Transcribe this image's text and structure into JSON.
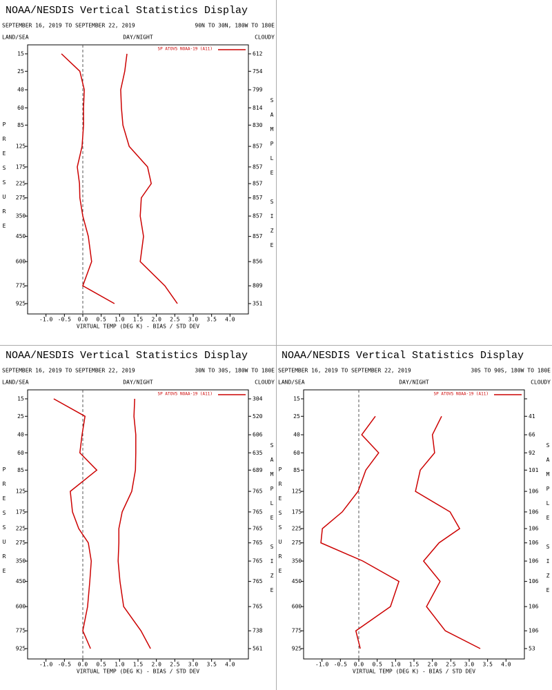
{
  "chart_data": [
    {
      "type": "line",
      "title": "NOAA/NESDIS Vertical Statistics Display",
      "subtitle": "SEPTEMBER 16, 2019 TO SEPTEMBER 22, 2019",
      "region": "90N TO 30N, 180W TO 180E",
      "left_label": "LAND/SEA",
      "center_label": "DAY/NIGHT",
      "right_label": "CLOUDY",
      "xlabel": "VIRTUAL TEMP (DEG K) - BIAS / STD DEV",
      "ylabel": "PRESSURE",
      "y2label": "SAMPLE SIZE",
      "xlim": [
        -1.5,
        4.5
      ],
      "xticks": [
        {
          "value": -1,
          "label": "-1.0"
        },
        -0.5,
        {
          "value": 0,
          "label": "0.0"
        },
        0.5,
        {
          "value": 1,
          "label": "1.0"
        },
        1.5,
        {
          "value": 2,
          "label": "2.0"
        },
        2.5,
        {
          "value": 3,
          "label": "3.0"
        },
        3.5,
        {
          "value": 4,
          "label": "4.0"
        }
      ],
      "y": [
        15,
        25,
        40,
        60,
        85,
        125,
        175,
        225,
        275,
        350,
        450,
        600,
        775,
        925
      ],
      "sample_size": [
        612,
        754,
        799,
        814,
        830,
        857,
        857,
        857,
        857,
        857,
        857,
        856,
        809,
        351
      ],
      "series": [
        {
          "name": "SP ATOVS NOAA-19 (A11)",
          "color": "#cc0000",
          "bias": [
            -0.58,
            -0.08,
            0.04,
            0.02,
            0.02,
            -0.02,
            -0.15,
            -0.09,
            -0.08,
            0,
            0.15,
            0.24,
            0,
            0.86
          ],
          "std_dev": [
            1.2,
            1.14,
            1.03,
            1.05,
            1.09,
            1.26,
            1.76,
            1.86,
            1.59,
            1.56,
            1.65,
            1.56,
            2.23,
            2.57
          ]
        }
      ]
    },
    {
      "type": "line",
      "title": "NOAA/NESDIS Vertical Statistics Display",
      "subtitle": "SEPTEMBER 16, 2019 TO SEPTEMBER 22, 2019",
      "region": "30N TO 30S, 180W TO 180E",
      "left_label": "LAND/SEA",
      "center_label": "DAY/NIGHT",
      "right_label": "CLOUDY",
      "xlabel": "VIRTUAL TEMP (DEG K) - BIAS / STD DEV",
      "ylabel": "PRESSURE",
      "y2label": "SAMPLE SIZE",
      "xlim": [
        -1.5,
        4.5
      ],
      "xticks": [
        {
          "value": -1,
          "label": "-1.0"
        },
        -0.5,
        {
          "value": 0,
          "label": "0.0"
        },
        0.5,
        {
          "value": 1,
          "label": "1.0"
        },
        1.5,
        {
          "value": 2,
          "label": "2.0"
        },
        2.5,
        {
          "value": 3,
          "label": "3.0"
        },
        3.5,
        {
          "value": 4,
          "label": "4.0"
        }
      ],
      "y": [
        15,
        25,
        40,
        60,
        85,
        125,
        175,
        225,
        275,
        350,
        450,
        600,
        775,
        925
      ],
      "sample_size": [
        304,
        520,
        606,
        635,
        689,
        765,
        765,
        765,
        765,
        765,
        765,
        765,
        738,
        561
      ],
      "series": [
        {
          "name": "SP ATOVS NOAA-19 (A11)",
          "color": "#cc0000",
          "bias": [
            -0.79,
            0.06,
            -0.02,
            -0.08,
            0.38,
            -0.34,
            -0.28,
            -0.11,
            0.15,
            0.23,
            0.19,
            0.13,
            0,
            0.21
          ],
          "std_dev": [
            1.41,
            1.39,
            1.44,
            1.44,
            1.43,
            1.33,
            1.07,
            0.98,
            0.98,
            0.96,
            1.01,
            1.11,
            1.58,
            1.84
          ]
        }
      ]
    },
    {
      "type": "line",
      "title": "NOAA/NESDIS Vertical Statistics Display",
      "subtitle": "SEPTEMBER 16, 2019 TO SEPTEMBER 22, 2019",
      "region": "30S TO 90S, 180W TO 180E",
      "left_label": "LAND/SEA",
      "center_label": "DAY/NIGHT",
      "right_label": "CLOUDY",
      "xlabel": "VIRTUAL TEMP (DEG K) - BIAS / STD DEV",
      "ylabel": "PRESSURE",
      "y2label": "SAMPLE SIZE",
      "xlim": [
        -1.5,
        4.5
      ],
      "xticks": [
        {
          "value": -1,
          "label": "-1.0"
        },
        -0.5,
        {
          "value": 0,
          "label": "0.0"
        },
        0.5,
        {
          "value": 1,
          "label": "1.0"
        },
        1.5,
        {
          "value": 2,
          "label": "2.0"
        },
        2.5,
        {
          "value": 3,
          "label": "3.0"
        },
        3.5,
        {
          "value": 4,
          "label": "4.0"
        }
      ],
      "y": [
        15,
        25,
        40,
        60,
        85,
        125,
        175,
        225,
        275,
        350,
        450,
        600,
        775,
        925
      ],
      "sample_size": [
        null,
        41,
        66,
        92,
        101,
        106,
        106,
        106,
        106,
        106,
        106,
        106,
        106,
        53
      ],
      "series": [
        {
          "name": "SP ATOVS NOAA-19 (A11)",
          "color": "#cc0000",
          "bias": [
            null,
            0.45,
            0.08,
            0.54,
            0.19,
            -0.02,
            -0.45,
            -0.99,
            -1.03,
            0.11,
            1.09,
            0.86,
            -0.08,
            0.04
          ],
          "std_dev": [
            null,
            2.25,
            2.0,
            2.06,
            1.67,
            1.54,
            2.48,
            2.74,
            2.18,
            1.76,
            2.21,
            1.84,
            2.35,
            3.3
          ]
        }
      ]
    }
  ]
}
